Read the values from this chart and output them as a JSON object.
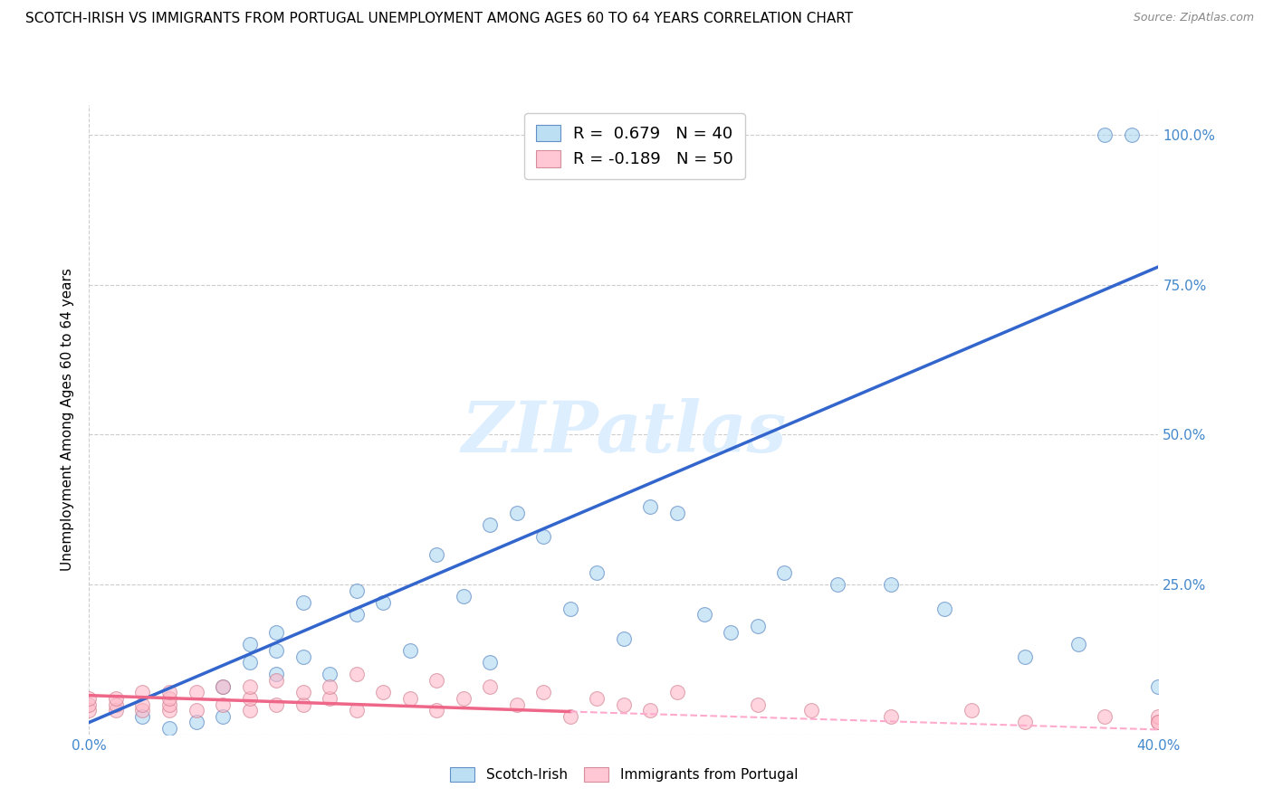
{
  "title": "SCOTCH-IRISH VS IMMIGRANTS FROM PORTUGAL UNEMPLOYMENT AMONG AGES 60 TO 64 YEARS CORRELATION CHART",
  "source": "Source: ZipAtlas.com",
  "ylabel": "Unemployment Among Ages 60 to 64 years",
  "xlim": [
    0.0,
    0.4
  ],
  "ylim": [
    0.0,
    1.05
  ],
  "right_yticks": [
    0.0,
    0.25,
    0.5,
    0.75,
    1.0
  ],
  "right_yticklabels": [
    "",
    "25.0%",
    "50.0%",
    "75.0%",
    "100.0%"
  ],
  "blue_R": 0.679,
  "blue_N": 40,
  "pink_R": -0.189,
  "pink_N": 50,
  "blue_color": "#ADD8F0",
  "blue_edge_color": "#4477BB",
  "pink_color": "#FFB8C8",
  "pink_edge_color": "#CC7788",
  "blue_line_color": "#3366CC",
  "pink_line_solid_color": "#EE6688",
  "pink_line_dashed_color": "#FFAACC",
  "watermark": "ZIPatlas",
  "blue_points_x": [
    0.02,
    0.03,
    0.04,
    0.05,
    0.05,
    0.06,
    0.06,
    0.07,
    0.07,
    0.07,
    0.08,
    0.08,
    0.09,
    0.1,
    0.1,
    0.11,
    0.12,
    0.13,
    0.14,
    0.15,
    0.15,
    0.16,
    0.17,
    0.18,
    0.19,
    0.2,
    0.21,
    0.22,
    0.23,
    0.24,
    0.25,
    0.26,
    0.28,
    0.3,
    0.32,
    0.35,
    0.37,
    0.38,
    0.39,
    0.4
  ],
  "blue_points_y": [
    0.03,
    0.01,
    0.02,
    0.03,
    0.08,
    0.12,
    0.15,
    0.1,
    0.14,
    0.17,
    0.13,
    0.22,
    0.1,
    0.2,
    0.24,
    0.22,
    0.14,
    0.3,
    0.23,
    0.35,
    0.12,
    0.37,
    0.33,
    0.21,
    0.27,
    0.16,
    0.38,
    0.37,
    0.2,
    0.17,
    0.18,
    0.27,
    0.25,
    0.25,
    0.21,
    0.13,
    0.15,
    1.0,
    1.0,
    0.08
  ],
  "pink_points_x": [
    0.0,
    0.0,
    0.0,
    0.01,
    0.01,
    0.01,
    0.02,
    0.02,
    0.02,
    0.03,
    0.03,
    0.03,
    0.03,
    0.04,
    0.04,
    0.05,
    0.05,
    0.06,
    0.06,
    0.06,
    0.07,
    0.07,
    0.08,
    0.08,
    0.09,
    0.09,
    0.1,
    0.1,
    0.11,
    0.12,
    0.13,
    0.13,
    0.14,
    0.15,
    0.16,
    0.17,
    0.18,
    0.19,
    0.2,
    0.21,
    0.22,
    0.25,
    0.27,
    0.3,
    0.33,
    0.35,
    0.38,
    0.4,
    0.4,
    0.4
  ],
  "pink_points_y": [
    0.04,
    0.05,
    0.06,
    0.04,
    0.05,
    0.06,
    0.04,
    0.05,
    0.07,
    0.04,
    0.05,
    0.06,
    0.07,
    0.04,
    0.07,
    0.05,
    0.08,
    0.04,
    0.06,
    0.08,
    0.05,
    0.09,
    0.05,
    0.07,
    0.06,
    0.08,
    0.04,
    0.1,
    0.07,
    0.06,
    0.04,
    0.09,
    0.06,
    0.08,
    0.05,
    0.07,
    0.03,
    0.06,
    0.05,
    0.04,
    0.07,
    0.05,
    0.04,
    0.03,
    0.04,
    0.02,
    0.03,
    0.02,
    0.03,
    0.02
  ],
  "blue_trend_x0": 0.0,
  "blue_trend_y0": 0.02,
  "blue_trend_x1": 0.4,
  "blue_trend_y1": 0.78,
  "pink_trend_solid_x0": 0.0,
  "pink_trend_solid_y0": 0.065,
  "pink_trend_solid_x1": 0.18,
  "pink_trend_solid_y1": 0.038,
  "pink_trend_dashed_x0": 0.18,
  "pink_trend_dashed_y0": 0.038,
  "pink_trend_dashed_x1": 0.4,
  "pink_trend_dashed_y1": 0.008
}
